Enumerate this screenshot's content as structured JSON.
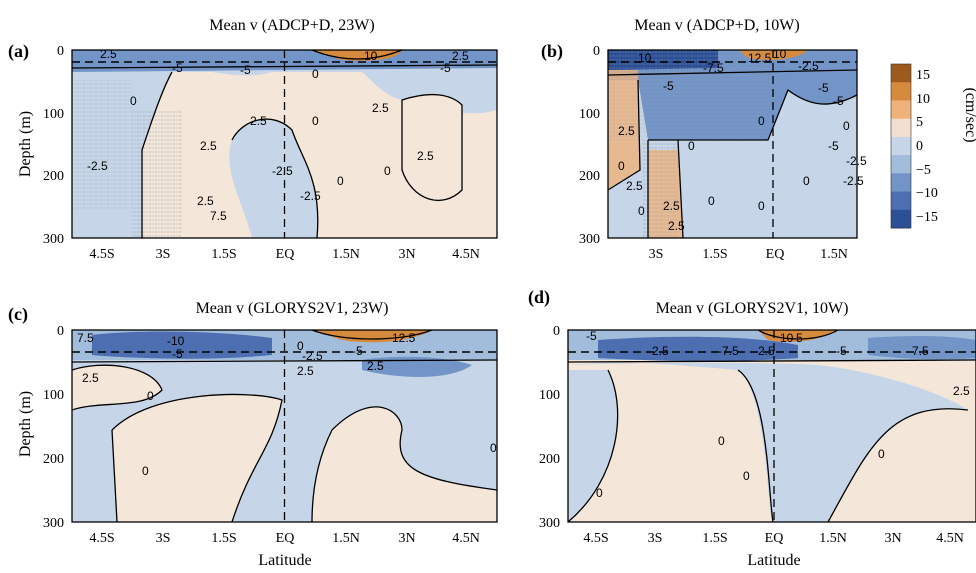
{
  "chart_data": [
    {
      "type": "heatmap",
      "panel": "(a)",
      "title": "Mean v (ADCP+D, 23W)",
      "ylabel": "Depth (m)",
      "xlabel": "",
      "yticks": [
        "0",
        "100",
        "200",
        "300"
      ],
      "xticks": [
        "4.5S",
        "3S",
        "1.5S",
        "EQ",
        "1.5N",
        "3N",
        "4.5N"
      ],
      "xlim": [
        -5.25,
        5.25
      ],
      "ylim": [
        300,
        0
      ],
      "contour_labels": [
        "2.5",
        "-5",
        "10",
        "-5",
        "2.5",
        "-5",
        "0",
        "2.5",
        "0",
        "-2.5",
        "2.5",
        "2.5",
        "-2.5",
        "0",
        "0",
        "2.5",
        "0",
        "2.5",
        "-2.5",
        "7.5"
      ],
      "regions": [
        {
          "value": -7.5,
          "x": [
            -5.25,
            5.25
          ],
          "y": [
            0,
            20
          ]
        },
        {
          "value": 12.5,
          "x": [
            1.0,
            3.5
          ],
          "y": [
            0,
            12
          ]
        },
        {
          "value": -2.5,
          "x": [
            -5.25,
            -1.8
          ],
          "y": [
            20,
            300
          ]
        },
        {
          "value": 2.5,
          "x": [
            -1.8,
            1.2
          ],
          "y": [
            30,
            150
          ]
        },
        {
          "value": -2.5,
          "x": [
            -0.5,
            1.0
          ],
          "y": [
            150,
            300
          ]
        },
        {
          "value": 2.5,
          "x": [
            2.3,
            4.5
          ],
          "y": [
            110,
            250
          ]
        },
        {
          "value": -2.5,
          "x": [
            1.0,
            5.25
          ],
          "y": [
            20,
            110
          ]
        }
      ]
    },
    {
      "type": "heatmap",
      "panel": "(b)",
      "title": "Mean v (ADCP+D, 10W)",
      "ylabel": "",
      "xlabel": "",
      "yticks": [
        "0",
        "100",
        "200",
        "300"
      ],
      "xticks": [
        "3S",
        "1.5S",
        "EQ",
        "1.5N"
      ],
      "xlim": [
        -4.3,
        2.3
      ],
      "ylim": [
        300,
        0
      ],
      "contour_labels": [
        "10",
        "-7.5",
        "12.5",
        "-2.5",
        "10",
        "-5",
        "2.5",
        "-5",
        "0",
        "2.5",
        "0",
        "0",
        "-5",
        "0",
        "0",
        "0",
        "0",
        "-2.5",
        "0",
        "-5",
        "-2.5",
        "2.5",
        "2.5"
      ],
      "regions": [
        {
          "value": -12.5,
          "x": [
            -4.3,
            -1.0
          ],
          "y": [
            0,
            30
          ]
        },
        {
          "value": 10,
          "x": [
            -0.5,
            1.5
          ],
          "y": [
            0,
            15
          ]
        },
        {
          "value": 2.5,
          "x": [
            -4.3,
            -3.3
          ],
          "y": [
            20,
            150
          ]
        },
        {
          "value": -5,
          "x": [
            -3.3,
            0.8
          ],
          "y": [
            30,
            160
          ]
        },
        {
          "value": -2.5,
          "x": [
            -2.5,
            2.3
          ],
          "y": [
            160,
            300
          ]
        },
        {
          "value": 2.5,
          "x": [
            -2.8,
            -2.2
          ],
          "y": [
            150,
            300
          ]
        }
      ]
    },
    {
      "type": "heatmap",
      "panel": "(c)",
      "title": "Mean v (GLORYS2V1, 23W)",
      "ylabel": "Depth (m)",
      "xlabel": "Latitude",
      "yticks": [
        "0",
        "100",
        "200",
        "300"
      ],
      "xticks": [
        "4.5S",
        "3S",
        "1.5S",
        "EQ",
        "1.5N",
        "3N",
        "4.5N"
      ],
      "xlim": [
        -5.25,
        5.25
      ],
      "ylim": [
        300,
        0
      ],
      "contour_labels": [
        "7.5",
        "-10",
        "-5",
        "2.5",
        "0",
        "0",
        "-2.5",
        "2.5",
        "12.5",
        "-5",
        "2.5",
        "0",
        "0"
      ],
      "regions": [
        {
          "value": -10,
          "x": [
            -5.25,
            0
          ],
          "y": [
            5,
            35
          ]
        },
        {
          "value": 12.5,
          "x": [
            1.0,
            4.5
          ],
          "y": [
            0,
            15
          ]
        },
        {
          "value": 2.5,
          "x": [
            -5.25,
            -3.3
          ],
          "y": [
            40,
            110
          ]
        },
        {
          "value": -2.5,
          "x": [
            -5.25,
            5.25
          ],
          "y": [
            40,
            300
          ]
        },
        {
          "value": 0,
          "x": [
            -4.5,
            -0.5
          ],
          "y": [
            100,
            300
          ]
        },
        {
          "value": 0,
          "x": [
            2.5,
            5.25
          ],
          "y": [
            90,
            300
          ]
        }
      ]
    },
    {
      "type": "heatmap",
      "panel": "(d)",
      "title": "Mean v (GLORYS2V1, 10W)",
      "ylabel": "",
      "xlabel": "Latitude",
      "yticks": [
        "0",
        "100",
        "200",
        "300"
      ],
      "xticks": [
        "4.5S",
        "3S",
        "1.5S",
        "EQ",
        "1.5N",
        "3N",
        "4.5N"
      ],
      "xlim": [
        -5.25,
        5.25
      ],
      "ylim": [
        300,
        0
      ],
      "contour_labels": [
        "-5",
        "-2.5",
        "-7.5",
        "2.5",
        "-5",
        "10",
        "5",
        "-7.5",
        "2.5",
        "0",
        "0",
        "0",
        "0"
      ],
      "regions": [
        {
          "value": -7.5,
          "x": [
            -5.25,
            5.25
          ],
          "y": [
            5,
            35
          ]
        },
        {
          "value": 10,
          "x": [
            0,
            1.5
          ],
          "y": [
            0,
            15
          ]
        },
        {
          "value": 0,
          "x": [
            -5.25,
            5.25
          ],
          "y": [
            40,
            300
          ]
        },
        {
          "value": -2.5,
          "x": [
            -3.5,
            1.5
          ],
          "y": [
            40,
            280
          ]
        }
      ]
    }
  ],
  "colorbar": {
    "label": "(cm/sec)",
    "tick_labels": [
      "15",
      "10",
      "5",
      "0",
      "−5",
      "−10",
      "−15"
    ],
    "levels": [
      15,
      10,
      5,
      0,
      -5,
      -10,
      -15
    ],
    "colors": [
      "#9c5a1c",
      "#d68a3d",
      "#efb27a",
      "#f3dfd0",
      "#c6d6e8",
      "#a2bcdb",
      "#7294c7",
      "#4d6fb1",
      "#2d4f95"
    ]
  }
}
